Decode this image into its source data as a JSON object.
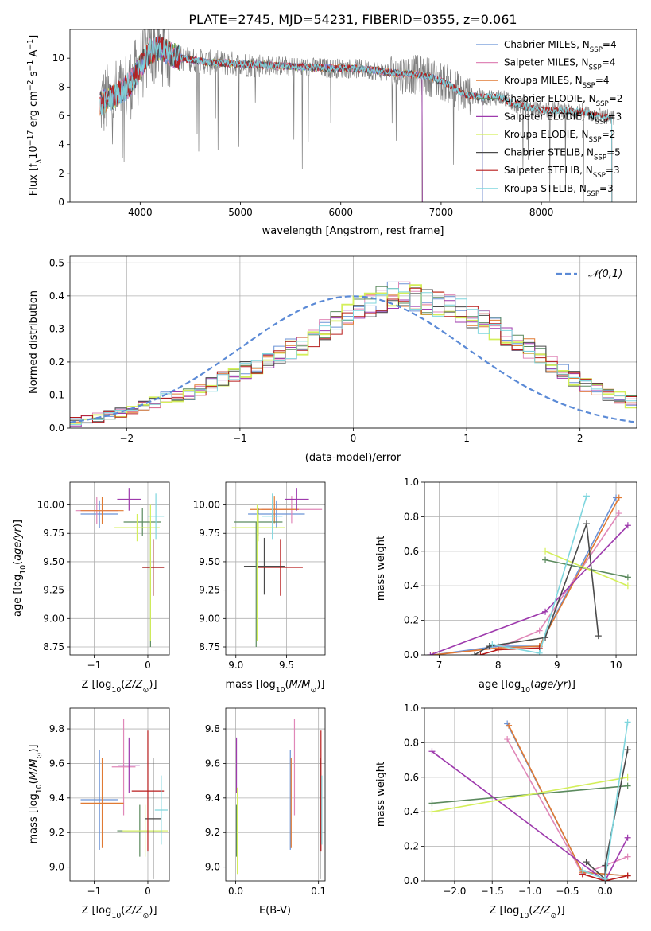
{
  "title": "PLATE=2745, MJD=54231, FIBERID=0355, z=0.061",
  "colors": {
    "chabrier_miles": "#6b93d6",
    "salpeter_miles": "#e087b8",
    "kroupa_miles": "#e07a33",
    "chabrier_elodie": "#5b8a5e",
    "salpeter_elodie": "#9e3aad",
    "kroupa_elodie": "#d4ef5a",
    "chabrier_stelib": "#4a4a4a",
    "salpeter_stelib": "#b81c1c",
    "kroupa_stelib": "#7fd6de",
    "observed": "#7f7f7f",
    "normal_curve": "#5b8ad6",
    "grid": "#b0b0b0"
  },
  "legend_spectrum": [
    "Chabrier MILES, N_SSP=4",
    "Salpeter MILES, N_SSP=4",
    "Kroupa MILES, N_SSP=4",
    "Chabrier ELODIE, N_SSP=2",
    "Salpeter ELODIE, N_SSP=3",
    "Kroupa ELODIE, N_SSP=2",
    "Chabrier STELIB, N_SSP=5",
    "Salpeter STELIB, N_SSP=3",
    "Kroupa STELIB, N_SSP=3"
  ],
  "legend_hist": "N(0,1)",
  "chart_data": [
    {
      "id": "spectrum",
      "type": "line",
      "xlabel": "wavelength [Angstrom, rest frame]",
      "ylabel": "Flux [f_λ 10^-17 erg cm^-2 s^-1 A^-1]",
      "xlim": [
        3300,
        8950
      ],
      "ylim": [
        0,
        12
      ],
      "xticks": [
        4000,
        5000,
        6000,
        7000,
        8000
      ],
      "yticks": [
        0,
        2,
        4,
        6,
        8,
        10
      ],
      "grid": false,
      "legend_position": "right",
      "continuum": {
        "x": [
          3600,
          3700,
          3800,
          3900,
          4000,
          4100,
          4200,
          4300,
          4400,
          4500,
          4700,
          5000,
          5300,
          5600,
          5900,
          6100,
          6300,
          6500,
          6600,
          6700,
          6900,
          7100,
          7200,
          7300,
          7400,
          7500,
          7600,
          7700,
          7800,
          7900,
          8000,
          8100,
          8200,
          8300,
          8400,
          8500,
          8600,
          8700
        ],
        "y": [
          6.8,
          7.2,
          7.6,
          8.2,
          9.4,
          10.5,
          10.7,
          10.3,
          10.0,
          9.9,
          9.7,
          9.6,
          9.5,
          9.4,
          9.3,
          9.3,
          9.2,
          9.0,
          8.9,
          8.9,
          8.7,
          8.1,
          7.6,
          7.4,
          7.3,
          7.3,
          7.3,
          6.9,
          6.7,
          6.5,
          6.4,
          6.4,
          6.4,
          6.3,
          6.3,
          6.1,
          6.0,
          5.8
        ]
      }
    },
    {
      "id": "residuals",
      "type": "histogram",
      "xlabel": "(data-model)/error",
      "ylabel": "Normed distribution",
      "xlim": [
        -2.5,
        2.5
      ],
      "ylim": [
        0,
        0.52
      ],
      "xticks": [
        -2,
        -1,
        0,
        1,
        2
      ],
      "yticks": [
        0.0,
        0.1,
        0.2,
        0.3,
        0.4,
        0.5
      ],
      "grid": true,
      "legend_position": "top-right",
      "bins": {
        "start": -2.5,
        "width": 0.1,
        "values": [
          0.02,
          0.025,
          0.03,
          0.04,
          0.05,
          0.06,
          0.07,
          0.08,
          0.09,
          0.1,
          0.105,
          0.12,
          0.13,
          0.15,
          0.16,
          0.175,
          0.19,
          0.21,
          0.225,
          0.24,
          0.25,
          0.28,
          0.3,
          0.32,
          0.34,
          0.36,
          0.375,
          0.39,
          0.4,
          0.41,
          0.395,
          0.385,
          0.375,
          0.37,
          0.355,
          0.34,
          0.32,
          0.3,
          0.28,
          0.26,
          0.24,
          0.22,
          0.19,
          0.17,
          0.15,
          0.13,
          0.12,
          0.105,
          0.09,
          0.08
        ]
      }
    },
    {
      "id": "age-vs-z",
      "type": "scatter",
      "xlabel": "Z [log10(Z/Z⊙)]",
      "ylabel": "age  [log10(age/yr)]",
      "xlim": [
        -1.45,
        0.4
      ],
      "ylim": [
        8.68,
        10.2
      ],
      "xticks": [
        -1,
        0
      ],
      "yticks": [
        8.75,
        9.0,
        9.25,
        9.5,
        9.75,
        10.0
      ],
      "grid": true,
      "points": [
        {
          "series": "Chabrier MILES",
          "x": -0.9,
          "y": 9.92,
          "xerr": 0.35,
          "yerr": 0.12
        },
        {
          "series": "Salpeter MILES",
          "x": -0.95,
          "y": 9.95,
          "xerr": 0.4,
          "yerr": 0.12
        },
        {
          "series": "Kroupa MILES",
          "x": -0.85,
          "y": 9.95,
          "xerr": 0.4,
          "yerr": 0.12
        },
        {
          "series": "Chabrier ELODIE",
          "x": -0.1,
          "y": 9.85,
          "xerr": 0.35,
          "yerr": 0.12
        },
        {
          "series": "Salpeter ELODIE",
          "x": -0.35,
          "y": 10.05,
          "xerr": 0.22,
          "yerr": 0.1
        },
        {
          "series": "Kroupa ELODIE",
          "x": -0.2,
          "y": 9.8,
          "xerr": 0.42,
          "yerr": 0.12
        },
        {
          "series": "Chabrier STELIB",
          "x": 0.1,
          "y": 9.45,
          "xerr": 0.2,
          "yerr": 0.25
        },
        {
          "series": "Salpeter STELIB",
          "x": 0.1,
          "y": 9.45,
          "xerr": 0.2,
          "yerr": 0.25
        },
        {
          "series": "Kroupa STELIB",
          "x": 0.15,
          "y": 9.9,
          "xerr": 0.15,
          "yerr": 0.2
        },
        {
          "series": "Chabrier ELODIE",
          "x": 0.05,
          "y": 9.3,
          "xerr": 0.0,
          "yerr": 0.55
        },
        {
          "series": "Kroupa ELODIE",
          "x": 0.05,
          "y": 9.4,
          "xerr": 0.0,
          "yerr": 0.6
        }
      ]
    },
    {
      "id": "age-vs-mass",
      "type": "scatter",
      "xlabel": "mass [log10(M/M⊙)]",
      "ylabel": "",
      "xlim": [
        8.9,
        9.88
      ],
      "ylim": [
        8.68,
        10.2
      ],
      "xticks": [
        9.0,
        9.5
      ],
      "yticks": [
        8.75,
        9.0,
        9.25,
        9.5,
        9.75,
        10.0
      ],
      "grid": true,
      "points": [
        {
          "series": "Chabrier MILES",
          "x": 9.4,
          "y": 9.92,
          "xerr": 0.28,
          "yerr": 0.12
        },
        {
          "series": "Salpeter MILES",
          "x": 9.55,
          "y": 9.96,
          "xerr": 0.3,
          "yerr": 0.12
        },
        {
          "series": "Kroupa MILES",
          "x": 9.38,
          "y": 9.96,
          "xerr": 0.24,
          "yerr": 0.12
        },
        {
          "series": "Chabrier ELODIE",
          "x": 9.22,
          "y": 9.85,
          "xerr": 0.24,
          "yerr": 0.12
        },
        {
          "series": "Salpeter ELODIE",
          "x": 9.6,
          "y": 10.05,
          "xerr": 0.12,
          "yerr": 0.1
        },
        {
          "series": "Kroupa ELODIE",
          "x": 9.22,
          "y": 9.8,
          "xerr": 0.26,
          "yerr": 0.12
        },
        {
          "series": "Chabrier STELIB",
          "x": 9.28,
          "y": 9.46,
          "xerr": 0.2,
          "yerr": 0.25
        },
        {
          "series": "Salpeter STELIB",
          "x": 9.44,
          "y": 9.45,
          "xerr": 0.22,
          "yerr": 0.25
        },
        {
          "series": "Kroupa STELIB",
          "x": 9.36,
          "y": 9.9,
          "xerr": 0.1,
          "yerr": 0.2
        },
        {
          "series": "Chabrier ELODIE",
          "x": 9.2,
          "y": 9.3,
          "xerr": 0.0,
          "yerr": 0.55
        },
        {
          "series": "Kroupa ELODIE",
          "x": 9.21,
          "y": 9.4,
          "xerr": 0.0,
          "yerr": 0.6
        }
      ]
    },
    {
      "id": "weight-vs-age",
      "type": "line",
      "xlabel": "age  [log10(age/yr)]",
      "ylabel": "mass weight",
      "xlim": [
        6.75,
        10.35
      ],
      "ylim": [
        0.0,
        1.0
      ],
      "xticks": [
        7,
        8,
        9,
        10
      ],
      "yticks": [
        0.0,
        0.2,
        0.4,
        0.6,
        0.8,
        1.0
      ],
      "grid": true,
      "series": [
        {
          "name": "Chabrier MILES",
          "x": [
            6.9,
            8.0,
            8.7,
            10.0
          ],
          "y": [
            0.0,
            0.05,
            0.05,
            0.91
          ]
        },
        {
          "name": "Salpeter MILES",
          "x": [
            6.9,
            8.0,
            8.7,
            10.05
          ],
          "y": [
            0.0,
            0.04,
            0.14,
            0.82
          ]
        },
        {
          "name": "Kroupa MILES",
          "x": [
            6.9,
            8.0,
            8.7,
            10.05
          ],
          "y": [
            0.0,
            0.04,
            0.05,
            0.91
          ]
        },
        {
          "name": "Chabrier ELODIE",
          "x": [
            8.8,
            10.2
          ],
          "y": [
            0.55,
            0.45
          ]
        },
        {
          "name": "Salpeter ELODIE",
          "x": [
            6.85,
            8.8,
            10.2
          ],
          "y": [
            0.0,
            0.25,
            0.75
          ]
        },
        {
          "name": "Kroupa ELODIE",
          "x": [
            8.8,
            10.2
          ],
          "y": [
            0.6,
            0.4
          ]
        },
        {
          "name": "Chabrier STELIB",
          "x": [
            7.6,
            7.85,
            8.8,
            9.5,
            9.7
          ],
          "y": [
            0.0,
            0.05,
            0.1,
            0.76,
            0.11
          ]
        },
        {
          "name": "Salpeter STELIB",
          "x": [
            7.7,
            8.0,
            8.7
          ],
          "y": [
            0.0,
            0.03,
            0.04
          ]
        },
        {
          "name": "Kroupa STELIB",
          "x": [
            7.9,
            8.7,
            9.5
          ],
          "y": [
            0.06,
            0.01,
            0.92
          ]
        }
      ]
    },
    {
      "id": "mass-vs-z",
      "type": "scatter",
      "xlabel": "Z [log10(Z/Z⊙)]",
      "ylabel": "mass [log10(M/M⊙)]",
      "xlim": [
        -1.45,
        0.4
      ],
      "ylim": [
        8.92,
        9.92
      ],
      "xticks": [
        -1,
        0
      ],
      "yticks": [
        9.0,
        9.2,
        9.4,
        9.6,
        9.8
      ],
      "grid": true,
      "points": [
        {
          "series": "Chabrier MILES",
          "x": -0.9,
          "y": 9.39,
          "xerr": 0.35,
          "yerr": 0.29
        },
        {
          "series": "Salpeter MILES",
          "x": -0.45,
          "y": 9.58,
          "xerr": 0.22,
          "yerr": 0.28
        },
        {
          "series": "Kroupa MILES",
          "x": -0.85,
          "y": 9.37,
          "xerr": 0.4,
          "yerr": 0.26
        },
        {
          "series": "Chabrier ELODIE",
          "x": -0.15,
          "y": 9.21,
          "xerr": 0.42,
          "yerr": 0.15
        },
        {
          "series": "Salpeter ELODIE",
          "x": -0.35,
          "y": 9.59,
          "xerr": 0.2,
          "yerr": 0.16
        },
        {
          "series": "Kroupa ELODIE",
          "x": -0.05,
          "y": 9.21,
          "xerr": 0.42,
          "yerr": 0.15
        },
        {
          "series": "Chabrier STELIB",
          "x": 0.1,
          "y": 9.28,
          "xerr": 0.15,
          "yerr": 0.35
        },
        {
          "series": "Salpeter STELIB",
          "x": 0.0,
          "y": 9.44,
          "xerr": 0.3,
          "yerr": 0.35
        },
        {
          "series": "Kroupa STELIB",
          "x": 0.25,
          "y": 9.33,
          "xerr": 0.12,
          "yerr": 0.2
        }
      ]
    },
    {
      "id": "mass-vs-ebv",
      "type": "scatter",
      "xlabel": "E(B-V)",
      "ylabel": "",
      "xlim": [
        -0.012,
        0.108
      ],
      "ylim": [
        8.92,
        9.92
      ],
      "xticks": [
        0.0,
        0.1
      ],
      "yticks": [
        9.0,
        9.2,
        9.4,
        9.6,
        9.8
      ],
      "grid": true,
      "points": [
        {
          "series": "Chabrier MILES",
          "x": 0.066,
          "y": 9.39,
          "xerr": 0,
          "yerr": 0.29
        },
        {
          "series": "Salpeter MILES",
          "x": 0.071,
          "y": 9.58,
          "xerr": 0,
          "yerr": 0.28
        },
        {
          "series": "Kroupa MILES",
          "x": 0.067,
          "y": 9.37,
          "xerr": 0,
          "yerr": 0.26
        },
        {
          "series": "Chabrier ELODIE",
          "x": 0.001,
          "y": 9.21,
          "xerr": 0,
          "yerr": 0.15
        },
        {
          "series": "Salpeter ELODIE",
          "x": 0.001,
          "y": 9.59,
          "xerr": 0,
          "yerr": 0.16
        },
        {
          "series": "Kroupa ELODIE",
          "x": 0.002,
          "y": 9.21,
          "xerr": 0,
          "yerr": 0.25
        },
        {
          "series": "Chabrier STELIB",
          "x": 0.102,
          "y": 9.28,
          "xerr": 0,
          "yerr": 0.35
        },
        {
          "series": "Salpeter STELIB",
          "x": 0.103,
          "y": 9.44,
          "xerr": 0,
          "yerr": 0.35
        },
        {
          "series": "Kroupa STELIB",
          "x": 0.104,
          "y": 9.33,
          "xerr": 0,
          "yerr": 0.2
        }
      ]
    },
    {
      "id": "weight-vs-z",
      "type": "line",
      "xlabel": "Z [log10(Z/Z⊙)]",
      "ylabel": "mass weight",
      "xlim": [
        -2.4,
        0.42
      ],
      "ylim": [
        0.0,
        1.0
      ],
      "xticks": [
        -2.0,
        -1.5,
        -1.0,
        -0.5,
        0.0
      ],
      "yticks": [
        0.0,
        0.2,
        0.4,
        0.6,
        0.8,
        1.0
      ],
      "grid": true,
      "series": [
        {
          "name": "Chabrier MILES",
          "x": [
            -1.3,
            -0.3,
            0.3
          ],
          "y": [
            0.91,
            0.05,
            0.03
          ]
        },
        {
          "name": "Salpeter MILES",
          "x": [
            -1.3,
            -0.3,
            0.3
          ],
          "y": [
            0.82,
            0.04,
            0.14
          ]
        },
        {
          "name": "Kroupa MILES",
          "x": [
            -1.28,
            -0.3,
            0.3
          ],
          "y": [
            0.9,
            0.05,
            0.03
          ]
        },
        {
          "name": "Chabrier ELODIE",
          "x": [
            -2.3,
            0.3
          ],
          "y": [
            0.45,
            0.55
          ]
        },
        {
          "name": "Salpeter ELODIE",
          "x": [
            -2.3,
            0.0,
            0.3
          ],
          "y": [
            0.75,
            0.0,
            0.25
          ]
        },
        {
          "name": "Kroupa ELODIE",
          "x": [
            -2.3,
            0.3
          ],
          "y": [
            0.4,
            0.6
          ]
        },
        {
          "name": "Chabrier STELIB",
          "x": [
            -0.25,
            0.0,
            0.0,
            0.3
          ],
          "y": [
            0.11,
            0.01,
            0.09,
            0.76
          ]
        },
        {
          "name": "Salpeter STELIB",
          "x": [
            -0.3,
            0.0,
            0.3
          ],
          "y": [
            0.04,
            0.0,
            0.03
          ]
        },
        {
          "name": "Kroupa STELIB",
          "x": [
            -0.3,
            0.0,
            0.3
          ],
          "y": [
            0.06,
            0.01,
            0.92
          ]
        }
      ]
    }
  ]
}
